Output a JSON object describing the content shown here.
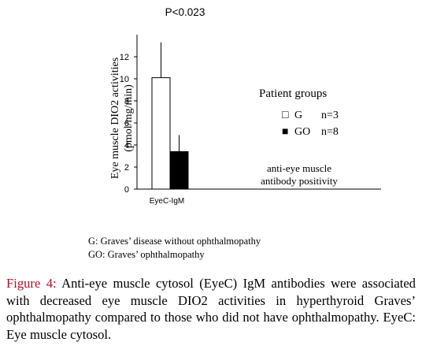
{
  "chart_data": {
    "type": "bar",
    "categories": [
      "EyeC-IgM"
    ],
    "series": [
      {
        "name": "G",
        "n": "n=3",
        "values": [
          10.1
        ],
        "error_upper": [
          13.3
        ],
        "fill": "#ffffff"
      },
      {
        "name": "GO",
        "n": "n=8",
        "values": [
          3.4
        ],
        "error_upper": [
          4.9
        ],
        "fill": "#000000"
      }
    ],
    "ylabel_line1": "Eye muscle DIO2 activities",
    "ylabel_line2": "(pmol/mg/min)",
    "ylim": [
      0,
      14
    ],
    "yticks": [
      "0",
      "2",
      "4",
      "6",
      "8",
      "10",
      "12"
    ],
    "p_value": "P<0.023",
    "legend_title": "Patient groups",
    "legend_placement": "right",
    "legend_markers": [
      "□",
      "■"
    ],
    "annotation_line1": "anti-eye muscle",
    "annotation_line2": "antibody positivity",
    "grid": false
  },
  "footnotes": {
    "g": "G:    Graves’ disease without ophthalmopathy",
    "go": "GO: Graves’ ophthalmopathy"
  },
  "caption": {
    "label": "Figure 4:",
    "text": " Anti-eye muscle cytosol (EyeC) IgM antibodies were associated with decreased eye muscle DIO2 activities in hyperthyroid Graves’ ophthalmopathy compared to those who did not have ophthalmopathy. EyeC: Eye muscle cytosol."
  }
}
